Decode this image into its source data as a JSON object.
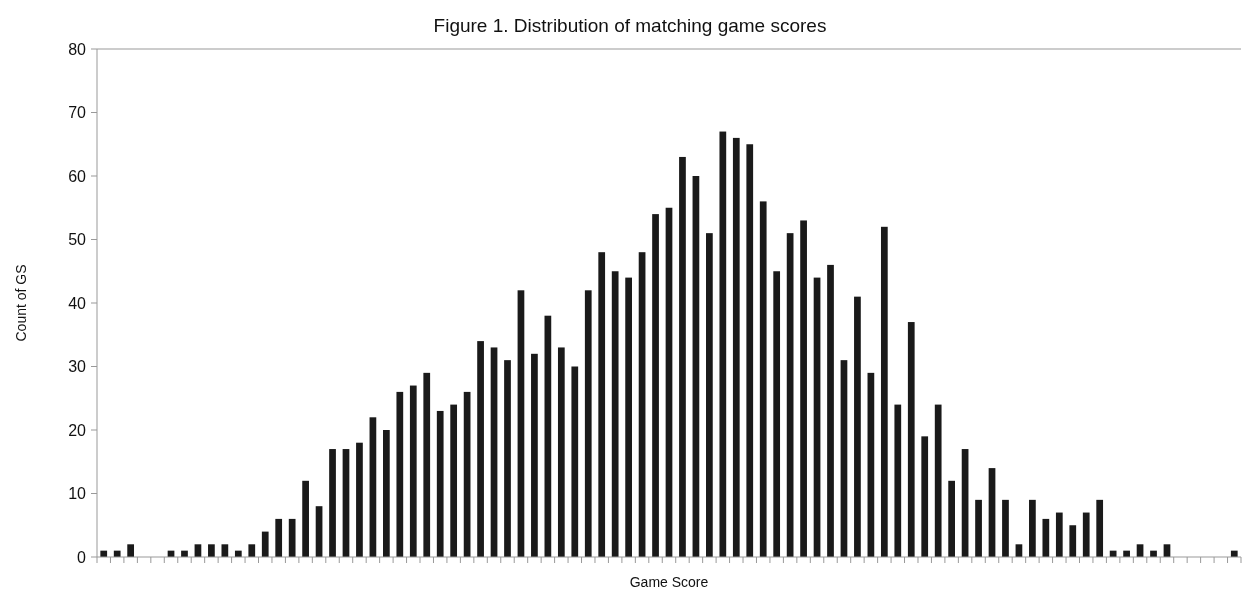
{
  "chart_data": {
    "type": "bar",
    "title": "Figure 1. Distribution of matching game scores",
    "xlabel": "Game Score",
    "ylabel": "Count of GS",
    "categories": [
      null,
      null,
      null,
      null,
      null,
      null,
      null,
      null,
      null,
      null,
      null,
      null,
      null,
      null,
      null,
      null,
      null,
      null,
      null,
      null,
      null,
      null,
      null,
      null,
      null,
      null,
      null,
      null,
      null,
      null,
      null,
      null,
      null,
      null,
      null,
      null,
      null,
      null,
      null,
      null,
      null,
      null,
      null,
      null,
      null,
      null,
      null,
      null,
      null,
      null,
      null,
      null,
      null,
      null,
      null,
      null,
      null,
      null,
      null,
      null,
      null,
      null,
      null,
      null,
      null,
      null,
      null,
      null,
      null,
      null,
      null,
      null,
      null,
      null,
      null,
      null,
      null,
      null,
      null,
      null,
      null,
      null,
      null,
      null,
      null
    ],
    "values": [
      1,
      1,
      2,
      0,
      0,
      1,
      1,
      2,
      2,
      2,
      1,
      2,
      4,
      6,
      6,
      12,
      8,
      17,
      17,
      18,
      22,
      20,
      26,
      27,
      29,
      23,
      24,
      26,
      34,
      33,
      31,
      42,
      32,
      38,
      33,
      30,
      42,
      48,
      45,
      44,
      48,
      54,
      55,
      63,
      60,
      51,
      67,
      66,
      65,
      56,
      45,
      51,
      53,
      44,
      46,
      31,
      41,
      29,
      52,
      24,
      37,
      19,
      24,
      12,
      17,
      9,
      14,
      9,
      2,
      9,
      6,
      7,
      5,
      7,
      9,
      1,
      1,
      2,
      1,
      2,
      0,
      0,
      0,
      0,
      1
    ],
    "color": "#1a1a1a",
    "ylim": [
      0,
      80
    ],
    "yticks": [
      0,
      10,
      20,
      30,
      40,
      50,
      60,
      70,
      80
    ],
    "grid": false
  }
}
